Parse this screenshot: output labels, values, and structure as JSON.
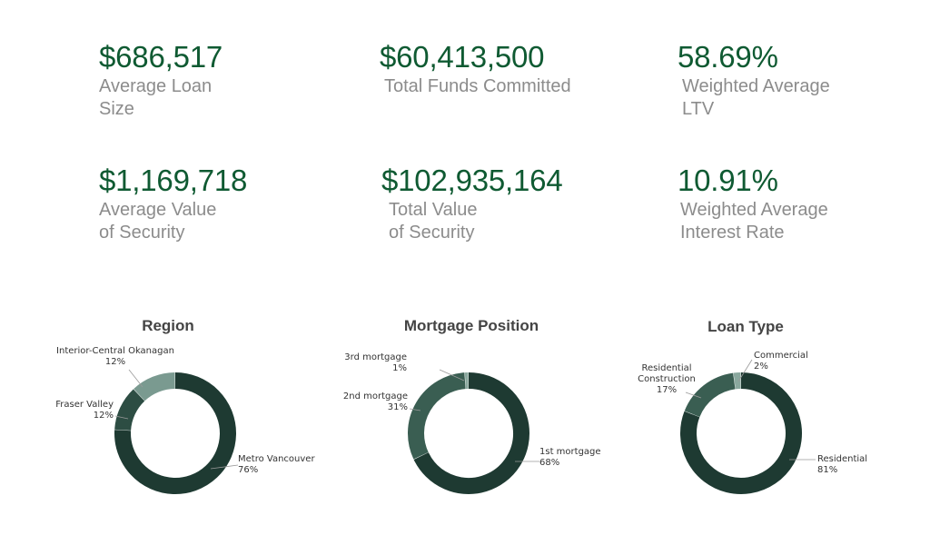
{
  "stats": [
    {
      "value": "$686,517",
      "label_lines": [
        "Average Loan",
        "Size"
      ]
    },
    {
      "value": "$60,413,500",
      "label_lines": [
        "Total Funds Committed"
      ]
    },
    {
      "value": "58.69%",
      "label_lines": [
        "Weighted Average",
        "LTV"
      ]
    },
    {
      "value": "$1,169,718",
      "label_lines": [
        "Average Value",
        "of Security"
      ]
    },
    {
      "value": "$102,935,164",
      "label_lines": [
        "Total Value",
        "of Security"
      ]
    },
    {
      "value": "10.91%",
      "label_lines": [
        "Weighted Average",
        "Interest Rate"
      ]
    }
  ],
  "colors": {
    "stat_value": "#0f5a32",
    "stat_label": "#8c8c8c",
    "slice_dark": "#1e3a32",
    "slice_mid": "#3a5e52",
    "slice_light": "#7a9a90"
  },
  "chart_data": [
    {
      "type": "pie",
      "title": "Region",
      "slices": [
        {
          "label_lines": [
            "Metro Vancouver"
          ],
          "percent_label": "76%",
          "value": 76,
          "color": "#1e3a32"
        },
        {
          "label_lines": [
            "Fraser Valley"
          ],
          "percent_label": "12%",
          "value": 12,
          "color": "#2d4d43"
        },
        {
          "label_lines": [
            "Interior-Central Okanagan"
          ],
          "percent_label": "12%",
          "value": 12,
          "color": "#7a9a90"
        }
      ]
    },
    {
      "type": "pie",
      "title": "Mortgage Position",
      "slices": [
        {
          "label_lines": [
            "1st mortgage"
          ],
          "percent_label": "68%",
          "value": 68,
          "color": "#1e3a32"
        },
        {
          "label_lines": [
            "2nd mortgage"
          ],
          "percent_label": "31%",
          "value": 31,
          "color": "#3a5e52"
        },
        {
          "label_lines": [
            "3rd mortgage"
          ],
          "percent_label": "1%",
          "value": 1,
          "color": "#8aa89e"
        }
      ]
    },
    {
      "type": "pie",
      "title": "Loan Type",
      "slices": [
        {
          "label_lines": [
            "Residential"
          ],
          "percent_label": "81%",
          "value": 81,
          "color": "#1e3a32"
        },
        {
          "label_lines": [
            "Residential",
            "Construction"
          ],
          "percent_label": "17%",
          "value": 17,
          "color": "#3a5e52"
        },
        {
          "label_lines": [
            "Commercial"
          ],
          "percent_label": "2%",
          "value": 2,
          "color": "#8aa89e"
        }
      ]
    }
  ]
}
